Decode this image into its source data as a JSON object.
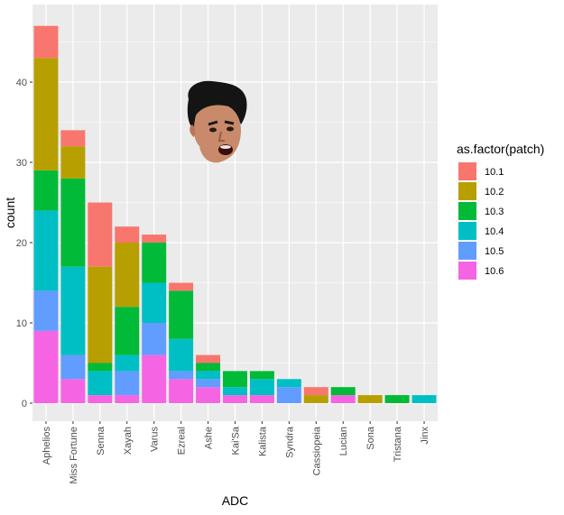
{
  "chart_data": {
    "type": "bar",
    "stacked": true,
    "xlabel": "ADC",
    "ylabel": "count",
    "ylim": [
      0,
      47
    ],
    "yticks": [
      0,
      10,
      20,
      30,
      40
    ],
    "grid": true,
    "legend": {
      "title": "as.factor(patch)",
      "placement": "right"
    },
    "categories": [
      "Aphelios",
      "Miss Fortune",
      "Senna",
      "Xayah",
      "Varus",
      "Ezreal",
      "Ashe",
      "Kai'Sa",
      "Kalista",
      "Syndra",
      "Cassiopeia",
      "Lucian",
      "Sona",
      "Tristana",
      "Jinx"
    ],
    "series": [
      {
        "name": "10.1",
        "color": "#F8766D",
        "values": [
          4,
          2,
          8,
          2,
          1,
          1,
          1,
          0,
          0,
          0,
          1,
          0,
          0,
          0,
          0
        ]
      },
      {
        "name": "10.2",
        "color": "#B79F00",
        "values": [
          14,
          4,
          12,
          8,
          0,
          0,
          0,
          0,
          0,
          0,
          1,
          0,
          1,
          0,
          0
        ]
      },
      {
        "name": "10.3",
        "color": "#00BA38",
        "values": [
          5,
          11,
          1,
          6,
          5,
          6,
          1,
          2,
          1,
          0,
          0,
          1,
          0,
          1,
          0
        ]
      },
      {
        "name": "10.4",
        "color": "#00BFC4",
        "values": [
          10,
          11,
          3,
          2,
          5,
          4,
          1,
          1,
          2,
          1,
          0,
          0,
          0,
          0,
          1
        ]
      },
      {
        "name": "10.5",
        "color": "#619CFF",
        "values": [
          5,
          3,
          0,
          3,
          4,
          1,
          1,
          0,
          0,
          2,
          0,
          0,
          0,
          0,
          0
        ]
      },
      {
        "name": "10.6",
        "color": "#F564E3",
        "values": [
          9,
          3,
          1,
          1,
          6,
          3,
          2,
          1,
          1,
          0,
          0,
          1,
          0,
          0,
          0
        ]
      }
    ],
    "panel_color": "#EBEBEB",
    "grid_color": "#FFFFFF"
  },
  "overlay": {
    "icon": "face-photo-icon"
  }
}
